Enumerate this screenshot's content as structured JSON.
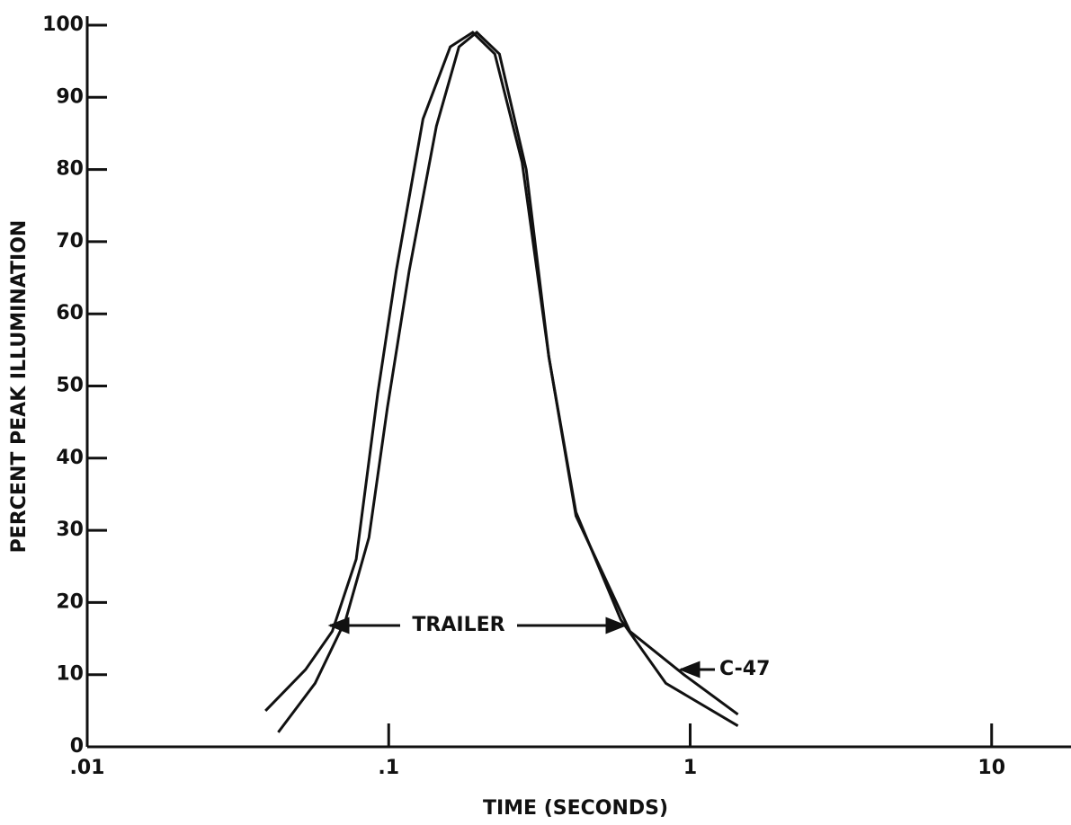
{
  "chart_data": {
    "type": "line",
    "x_label": "TIME (SECONDS)",
    "y_label": "PERCENT PEAK ILLUMINATION",
    "xscale": "log",
    "xlim": [
      0.01,
      17
    ],
    "ylim": [
      0,
      100
    ],
    "xticks": [
      {
        "value": 0.01,
        "label": ".01"
      },
      {
        "value": 0.1,
        "label": ".1"
      },
      1,
      10
    ],
    "yticks": [
      0,
      10,
      20,
      30,
      40,
      50,
      60,
      70,
      80,
      90,
      100
    ],
    "series": [
      {
        "name": "TRAILER",
        "color": "#111111",
        "x": [
          0.039,
          0.053,
          0.065,
          0.078,
          0.092,
          0.106,
          0.13,
          0.16,
          0.19,
          0.225,
          0.277,
          0.34,
          0.418,
          0.589,
          0.83,
          1.44
        ],
        "values": [
          5,
          10.7,
          16,
          26,
          49,
          66,
          87,
          97,
          99,
          96,
          81,
          54,
          32.5,
          17.6,
          8.8,
          2.9
        ]
      },
      {
        "name": "C-47",
        "color": "#111111",
        "x": [
          0.043,
          0.057,
          0.072,
          0.086,
          0.099,
          0.117,
          0.144,
          0.171,
          0.196,
          0.233,
          0.286,
          0.34,
          0.418,
          0.631,
          0.953,
          1.44
        ],
        "values": [
          2,
          8.8,
          17.6,
          29,
          47,
          66,
          86,
          97,
          99,
          96,
          80,
          54,
          32,
          16,
          10,
          4.5
        ]
      }
    ]
  }
}
